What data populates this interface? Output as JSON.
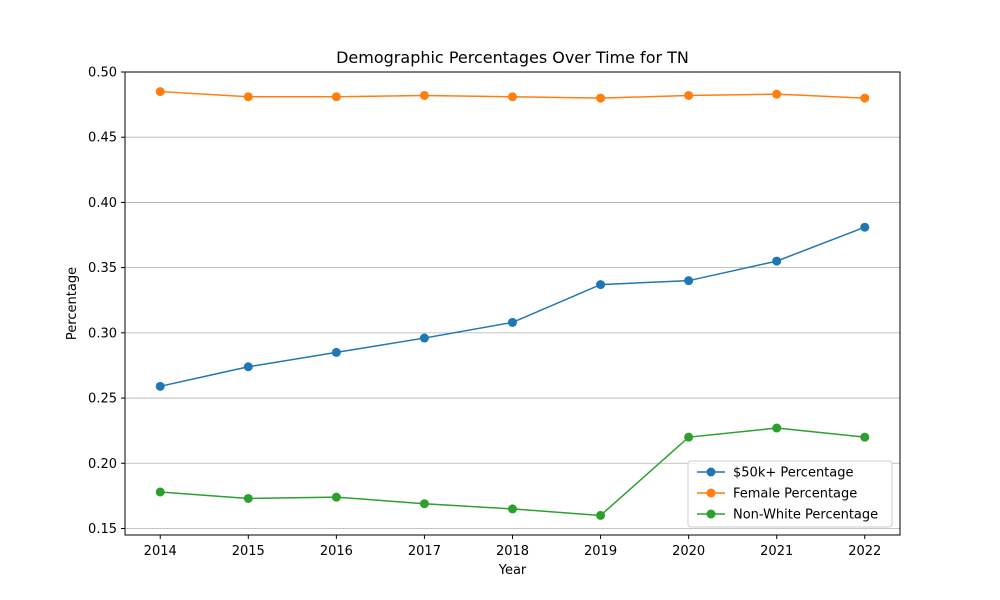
{
  "chart_data": {
    "type": "line",
    "title": "Demographic Percentages Over Time for TN",
    "xlabel": "Year",
    "ylabel": "Percentage",
    "x": [
      2014,
      2015,
      2016,
      2017,
      2018,
      2019,
      2020,
      2021,
      2022
    ],
    "xlim": [
      2013.6,
      2022.4
    ],
    "ylim": [
      0.145,
      0.5
    ],
    "yticks": [
      0.15,
      0.2,
      0.25,
      0.3,
      0.35,
      0.4,
      0.45,
      0.5
    ],
    "ytick_labels": [
      "0.15",
      "0.20",
      "0.25",
      "0.30",
      "0.35",
      "0.40",
      "0.45",
      "0.50"
    ],
    "grid": "horizontal",
    "legend_position": "lower-right",
    "series": [
      {
        "name": "$50k+ Percentage",
        "color": "#1f77b4",
        "values": [
          0.259,
          0.274,
          0.285,
          0.296,
          0.308,
          0.337,
          0.34,
          0.355,
          0.381
        ]
      },
      {
        "name": "Female Percentage",
        "color": "#ff7f0e",
        "values": [
          0.485,
          0.481,
          0.481,
          0.482,
          0.481,
          0.48,
          0.482,
          0.483,
          0.48
        ]
      },
      {
        "name": "Non-White Percentage",
        "color": "#2ca02c",
        "values": [
          0.178,
          0.173,
          0.174,
          0.169,
          0.165,
          0.16,
          0.22,
          0.227,
          0.22
        ]
      }
    ]
  }
}
